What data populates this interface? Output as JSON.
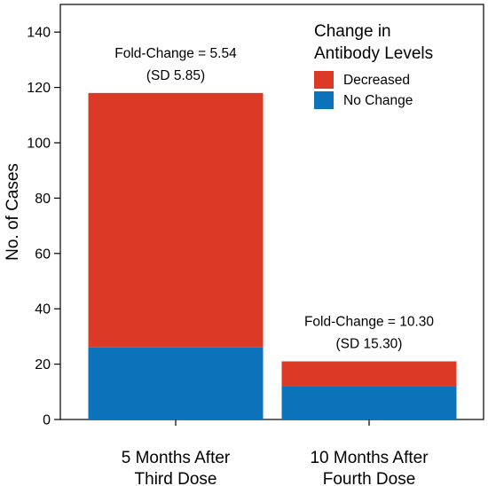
{
  "chart_data": {
    "type": "bar",
    "stacked": true,
    "title": "",
    "xlabel": "",
    "ylabel": "No. of Cases",
    "ylim": [
      0,
      150
    ],
    "yticks": [
      0,
      20,
      40,
      60,
      80,
      100,
      120,
      140
    ],
    "categories": [
      [
        "5 Months After",
        "Third Dose"
      ],
      [
        "10 Months After",
        "Fourth Dose"
      ]
    ],
    "series": [
      {
        "name": "No Change",
        "color": "#0C72BA",
        "values": [
          26,
          12
        ]
      },
      {
        "name": "Decreased",
        "color": "#DB3B26",
        "values": [
          92,
          9
        ]
      }
    ],
    "annotations": [
      [
        "Fold-Change = 5.54",
        "(SD 5.85)"
      ],
      [
        "Fold-Change = 10.30",
        "(SD 15.30)"
      ]
    ],
    "legend": {
      "title": [
        "Change in",
        "Antibody Levels"
      ],
      "position": "top-right",
      "entries": [
        {
          "label": "Decreased",
          "color": "#DB3B26"
        },
        {
          "label": "No Change",
          "color": "#0C72BA"
        }
      ]
    }
  }
}
